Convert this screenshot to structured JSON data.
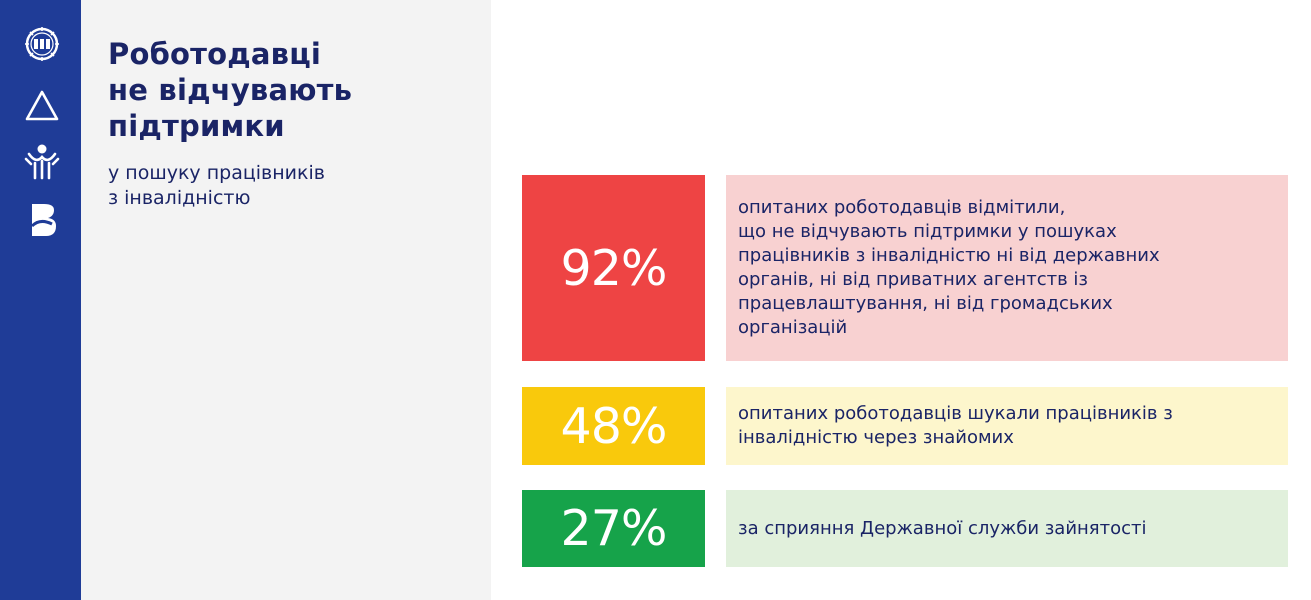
{
  "title_lines": [
    "Роботодавці",
    "не відчувають",
    "підтримки"
  ],
  "subtitle_lines": [
    "у пошуку працівників",
    "з інвалідністю"
  ],
  "sidebar_logos": [
    "ilo-emblem-logo",
    "triangle-logo",
    "people-figure-logo",
    "stylized-b-logo"
  ],
  "stats": [
    {
      "value": "92%",
      "color": "#ee4444",
      "bg": "#f8d1d1",
      "text_lines": [
        "опитаних роботодавців відмітили,",
        "що не відчувають підтримки у пошуках",
        "працівників з інвалідністю ні від державних",
        "органів, ні від приватних агентств із",
        "працевлаштування, ні від громадських",
        "організацій"
      ]
    },
    {
      "value": "48%",
      "color": "#f9c90c",
      "bg": "#fdf6cc",
      "text_lines": [
        "опитаних роботодавців шукали працівників з",
        "інвалідністю через знайомих"
      ]
    },
    {
      "value": "27%",
      "color": "#16a34a",
      "bg": "#e1f0dc",
      "text_lines": [
        "за сприяння Державної служби зайнятості"
      ]
    }
  ]
}
